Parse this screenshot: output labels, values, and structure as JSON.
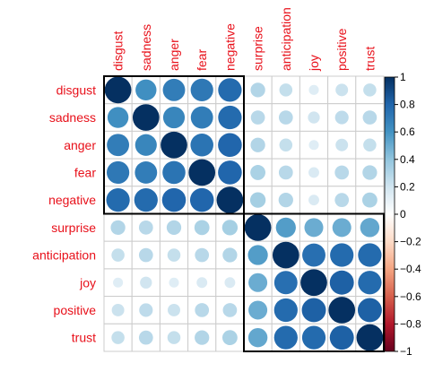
{
  "chart_data": {
    "type": "heatmap",
    "variables": [
      "disgust",
      "sadness",
      "anger",
      "fear",
      "negative",
      "surprise",
      "anticipation",
      "joy",
      "positive",
      "trust"
    ],
    "matrix": [
      [
        1.0,
        0.62,
        0.7,
        0.72,
        0.78,
        0.3,
        0.24,
        0.14,
        0.22,
        0.24
      ],
      [
        0.62,
        1.0,
        0.66,
        0.7,
        0.78,
        0.28,
        0.28,
        0.2,
        0.26,
        0.28
      ],
      [
        0.7,
        0.66,
        1.0,
        0.74,
        0.8,
        0.3,
        0.24,
        0.14,
        0.22,
        0.24
      ],
      [
        0.72,
        0.7,
        0.74,
        1.0,
        0.8,
        0.32,
        0.28,
        0.16,
        0.28,
        0.3
      ],
      [
        0.78,
        0.78,
        0.8,
        0.8,
        1.0,
        0.34,
        0.3,
        0.16,
        0.28,
        0.32
      ],
      [
        0.3,
        0.28,
        0.3,
        0.32,
        0.34,
        1.0,
        0.56,
        0.5,
        0.5,
        0.52
      ],
      [
        0.24,
        0.28,
        0.24,
        0.28,
        0.3,
        0.56,
        1.0,
        0.76,
        0.78,
        0.78
      ],
      [
        0.14,
        0.2,
        0.14,
        0.16,
        0.16,
        0.5,
        0.76,
        1.0,
        0.82,
        0.78
      ],
      [
        0.22,
        0.26,
        0.22,
        0.28,
        0.28,
        0.5,
        0.78,
        0.82,
        1.0,
        0.82
      ],
      [
        0.24,
        0.28,
        0.24,
        0.3,
        0.32,
        0.52,
        0.78,
        0.78,
        0.82,
        1.0
      ]
    ],
    "clusters": [
      [
        0,
        4
      ],
      [
        5,
        9
      ]
    ],
    "colorbar": {
      "ticks": [
        "1",
        "0.8",
        "0.6",
        "0.4",
        "0.2",
        "0",
        "−0.2",
        "−0.4",
        "−0.6",
        "−0.8",
        "−1"
      ],
      "range": [
        -1,
        1
      ]
    },
    "colors": {
      "label": "#e8101a",
      "positive_strong": "#053061",
      "neutral": "#ffffff",
      "negative_strong": "#67001f",
      "grid": "#cccccc",
      "cluster_border": "#000000"
    }
  }
}
